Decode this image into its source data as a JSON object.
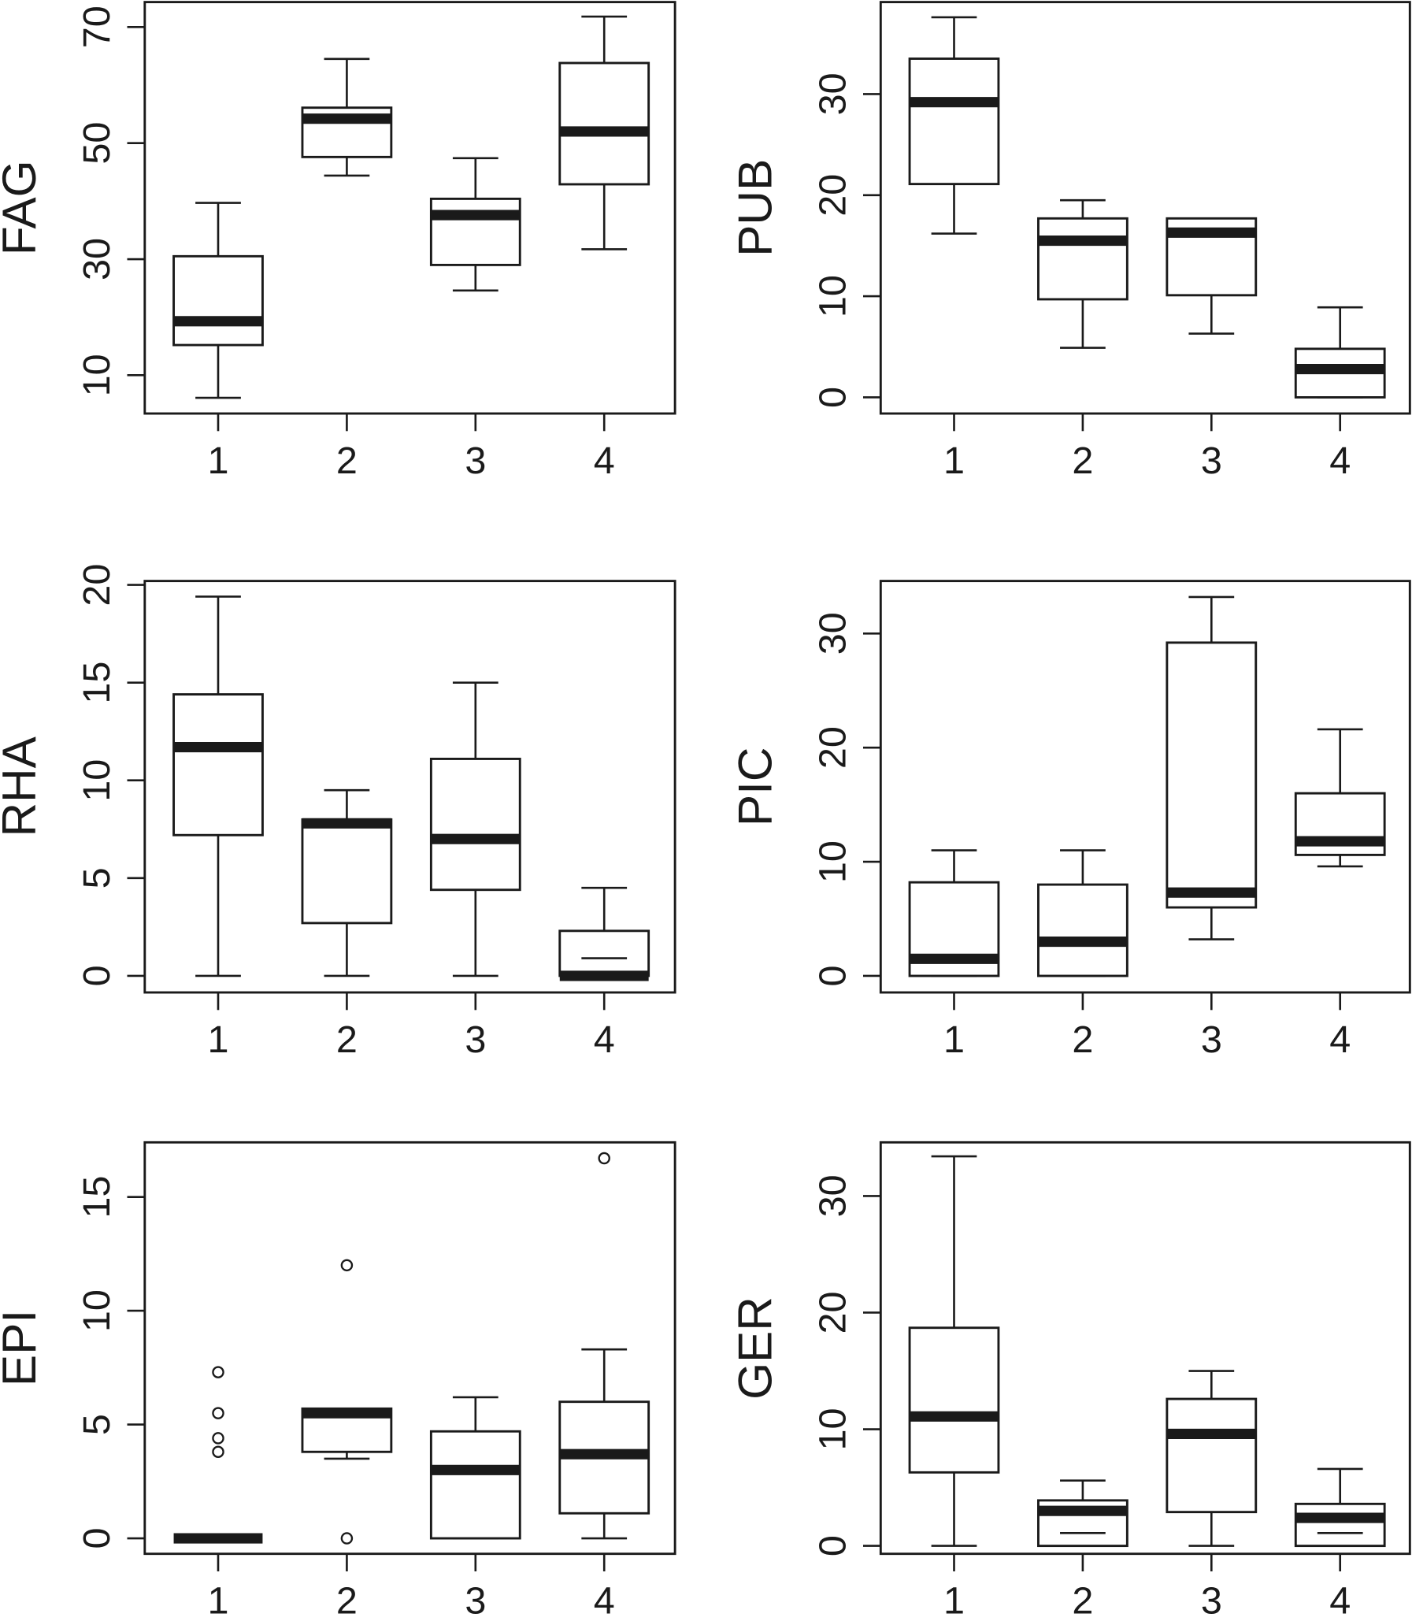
{
  "chart_data": [
    {
      "type": "box",
      "y_label": "FAG",
      "categories": [
        "1",
        "2",
        "3",
        "4"
      ],
      "ylim": [
        3.4,
        74.3
      ],
      "yticks": [
        10,
        30,
        50,
        70
      ],
      "boxes": [
        {
          "whislo": 6.1,
          "q1": 15.2,
          "med": 19.3,
          "q3": 30.5,
          "whishi": 39.7,
          "fliers": []
        },
        {
          "whislo": 44.4,
          "q1": 47.6,
          "med": 54.2,
          "q3": 56.1,
          "whishi": 64.5,
          "fliers": []
        },
        {
          "whislo": 24.6,
          "q1": 29.0,
          "med": 37.6,
          "q3": 40.4,
          "whishi": 47.4,
          "fliers": []
        },
        {
          "whislo": 31.7,
          "q1": 42.9,
          "med": 52.0,
          "q3": 63.8,
          "whishi": 71.8,
          "fliers": []
        }
      ]
    },
    {
      "type": "box",
      "y_label": "PUB",
      "categories": [
        "1",
        "2",
        "3",
        "4"
      ],
      "ylim": [
        -1.6,
        39.1
      ],
      "yticks": [
        0,
        10,
        20,
        30
      ],
      "boxes": [
        {
          "whislo": 16.2,
          "q1": 21.1,
          "med": 29.2,
          "q3": 33.5,
          "whishi": 37.6,
          "fliers": []
        },
        {
          "whislo": 4.9,
          "q1": 9.7,
          "med": 15.5,
          "q3": 17.7,
          "whishi": 19.5,
          "fliers": []
        },
        {
          "whislo": 6.3,
          "q1": 10.1,
          "med": 16.3,
          "q3": 17.7,
          "whishi": 17.7,
          "fliers": []
        },
        {
          "whislo": 0,
          "q1": 0,
          "med": 2.8,
          "q3": 4.8,
          "whishi": 8.9,
          "fliers": []
        }
      ]
    },
    {
      "type": "box",
      "y_label": "RHA",
      "categories": [
        "1",
        "2",
        "3",
        "4"
      ],
      "ylim": [
        -0.85,
        20.2
      ],
      "yticks": [
        0,
        5,
        10,
        15,
        20
      ],
      "boxes": [
        {
          "whislo": 0,
          "q1": 7.2,
          "med": 11.7,
          "q3": 14.4,
          "whishi": 19.4,
          "fliers": []
        },
        {
          "whislo": 0,
          "q1": 2.7,
          "med": 7.8,
          "q3": 8.0,
          "whishi": 9.5,
          "fliers": []
        },
        {
          "whislo": 0,
          "q1": 4.4,
          "med": 7.0,
          "q3": 11.1,
          "whishi": 15.0,
          "fliers": []
        },
        {
          "whislo": 0,
          "q1": 0,
          "med": 0,
          "q3": 2.3,
          "whishi": 4.5,
          "fliers": [],
          "inner": 0.9
        }
      ]
    },
    {
      "type": "box",
      "y_label": "PIC",
      "categories": [
        "1",
        "2",
        "3",
        "4"
      ],
      "ylim": [
        -1.45,
        34.6
      ],
      "yticks": [
        0,
        10,
        20,
        30
      ],
      "boxes": [
        {
          "whislo": 0,
          "q1": 0,
          "med": 1.5,
          "q3": 8.2,
          "whishi": 11.0,
          "fliers": []
        },
        {
          "whislo": 0,
          "q1": 0,
          "med": 3.0,
          "q3": 8.0,
          "whishi": 11.0,
          "fliers": []
        },
        {
          "whislo": 3.2,
          "q1": 6.0,
          "med": 7.3,
          "q3": 29.2,
          "whishi": 33.2,
          "fliers": []
        },
        {
          "whislo": 9.6,
          "q1": 10.6,
          "med": 11.8,
          "q3": 16.0,
          "whishi": 21.6,
          "fliers": []
        }
      ]
    },
    {
      "type": "box",
      "y_label": "EPI",
      "categories": [
        "1",
        "2",
        "3",
        "4"
      ],
      "ylim": [
        -0.68,
        17.4
      ],
      "yticks": [
        0,
        5,
        10,
        15
      ],
      "boxes": [
        {
          "whislo": 0,
          "q1": 0,
          "med": 0,
          "q3": 0,
          "whishi": 0,
          "fliers": [
            7.3,
            5.5,
            4.4,
            3.8
          ]
        },
        {
          "whislo": 3.5,
          "q1": 3.8,
          "med": 5.5,
          "q3": 5.7,
          "whishi": 5.7,
          "fliers": [
            12.0,
            0
          ]
        },
        {
          "whislo": 0,
          "q1": 0,
          "med": 3.0,
          "q3": 4.7,
          "whishi": 6.2,
          "fliers": []
        },
        {
          "whislo": 0,
          "q1": 1.1,
          "med": 3.7,
          "q3": 6.0,
          "whishi": 8.3,
          "fliers": [
            16.7
          ]
        }
      ]
    },
    {
      "type": "box",
      "y_label": "GER",
      "categories": [
        "1",
        "2",
        "3",
        "4"
      ],
      "ylim": [
        -0.68,
        34.6
      ],
      "yticks": [
        0,
        10,
        20,
        30
      ],
      "boxes": [
        {
          "whislo": 0,
          "q1": 6.3,
          "med": 11.1,
          "q3": 18.7,
          "whishi": 33.4,
          "fliers": []
        },
        {
          "whislo": 0,
          "q1": 0,
          "med": 3.0,
          "q3": 3.9,
          "whishi": 5.6,
          "fliers": [],
          "inner": 1.1
        },
        {
          "whislo": 0,
          "q1": 2.9,
          "med": 9.6,
          "q3": 12.6,
          "whishi": 15.0,
          "fliers": []
        },
        {
          "whislo": 0,
          "q1": 0,
          "med": 2.4,
          "q3": 3.6,
          "whishi": 6.6,
          "fliers": [],
          "inner": 1.1
        }
      ]
    }
  ]
}
